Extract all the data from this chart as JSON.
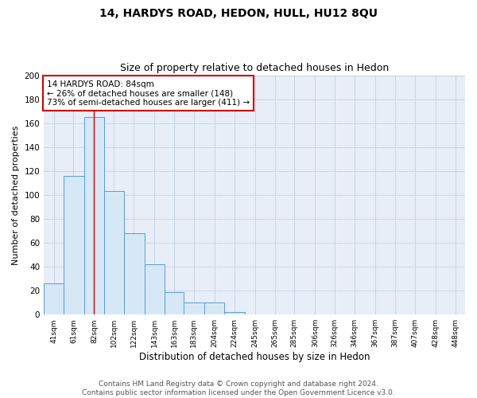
{
  "title": "14, HARDYS ROAD, HEDON, HULL, HU12 8QU",
  "subtitle": "Size of property relative to detached houses in Hedon",
  "xlabel": "Distribution of detached houses by size in Hedon",
  "ylabel": "Number of detached properties",
  "bin_edges": [
    31,
    51,
    72,
    92,
    112,
    133,
    153,
    173,
    194,
    214,
    235,
    255,
    275,
    296,
    316,
    336,
    357,
    377,
    397,
    418,
    438,
    458
  ],
  "bar_heights": [
    26,
    116,
    165,
    103,
    68,
    42,
    19,
    10,
    10,
    2,
    0,
    0,
    0,
    0,
    0,
    0,
    0,
    0,
    0,
    0,
    0
  ],
  "tick_positions": [
    41,
    61,
    82,
    102,
    122,
    143,
    163,
    183,
    204,
    224,
    245,
    265,
    285,
    306,
    326,
    346,
    367,
    387,
    407,
    428,
    448
  ],
  "bar_color": "#d6e8f5",
  "bar_edgecolor": "#5b9bd5",
  "property_line_x": 82,
  "property_line_color": "#cc0000",
  "annotation_text_line1": "14 HARDYS ROAD: 84sqm",
  "annotation_text_line2": "← 26% of detached houses are smaller (148)",
  "annotation_text_line3": "73% of semi-detached houses are larger (411) →",
  "annotation_box_color": "#ffffff",
  "annotation_border_color": "#cc0000",
  "tick_labels": [
    "41sqm",
    "61sqm",
    "82sqm",
    "102sqm",
    "122sqm",
    "143sqm",
    "163sqm",
    "183sqm",
    "204sqm",
    "224sqm",
    "245sqm",
    "265sqm",
    "285sqm",
    "306sqm",
    "326sqm",
    "346sqm",
    "367sqm",
    "387sqm",
    "407sqm",
    "428sqm",
    "448sqm"
  ],
  "ylim": [
    0,
    200
  ],
  "yticks": [
    0,
    20,
    40,
    60,
    80,
    100,
    120,
    140,
    160,
    180,
    200
  ],
  "grid_color": "#c8d4e4",
  "background_color": "#e8eef8",
  "footer_line1": "Contains HM Land Registry data © Crown copyright and database right 2024.",
  "footer_line2": "Contains public sector information licensed under the Open Government Licence v3.0.",
  "title_fontsize": 10,
  "subtitle_fontsize": 9,
  "xlabel_fontsize": 8.5,
  "ylabel_fontsize": 8,
  "tick_fontsize": 6.5,
  "footer_fontsize": 6.5
}
